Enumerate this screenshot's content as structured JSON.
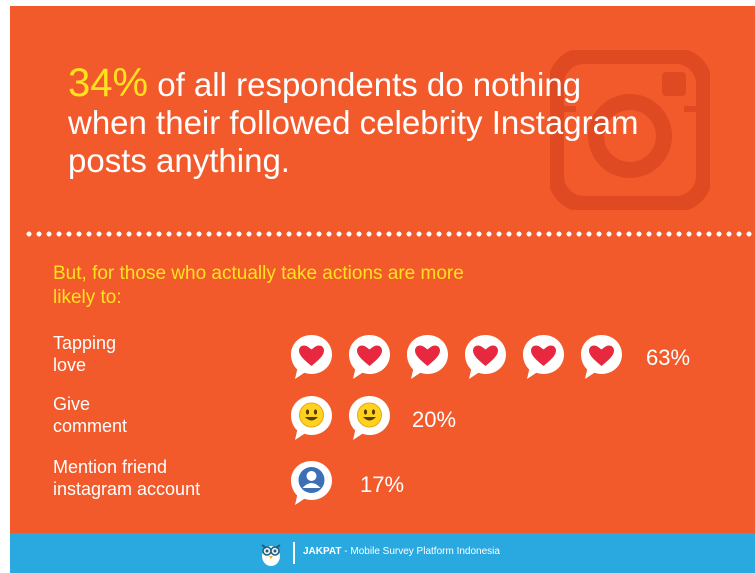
{
  "headline": {
    "stat": "34%",
    "text": "of all respondents do nothing when their followed celebrity Instagram posts anything."
  },
  "intro": "But, for those who actually take actions are more likely to:",
  "rows": [
    {
      "label_line1": "Tapping",
      "label_line2": "love",
      "icon": "heart-bubble-icon",
      "count": 6,
      "percent": "63%"
    },
    {
      "label_line1": "Give",
      "label_line2": "comment",
      "icon": "smiley-bubble-icon",
      "count": 2,
      "percent": "20%"
    },
    {
      "label_line1": "Mention friend",
      "label_line2": "instagram account",
      "icon": "user-bubble-icon",
      "count": 1,
      "percent": "17%"
    }
  ],
  "footer": {
    "brand": "JAKPAT",
    "tagline": " - Mobile Survey Platform Indonesia"
  },
  "colors": {
    "background": "#f25a2b",
    "accent": "#ffe21f",
    "footer": "#2aa9e0",
    "heart": "#e8283f"
  }
}
